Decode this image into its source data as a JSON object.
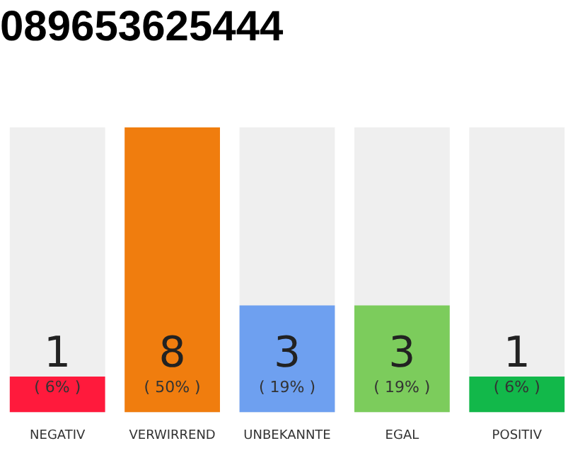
{
  "chart_data": {
    "type": "bar",
    "title": "089653625444",
    "categories": [
      "NEGATIV",
      "VERWIRREND",
      "UNBEKANNTE",
      "EGAL",
      "POSITIV"
    ],
    "values": [
      1,
      8,
      3,
      3,
      1
    ],
    "colors": [
      "#ff1a3c",
      "#f07d0e",
      "#6ea0f0",
      "#7ccc5c",
      "#12b84a"
    ],
    "data_labels": true,
    "annotations": [
      "( 6% )",
      "( 50% )",
      "( 19% )",
      "( 19% )",
      "( 6% )"
    ],
    "grid": false,
    "legend": false
  }
}
